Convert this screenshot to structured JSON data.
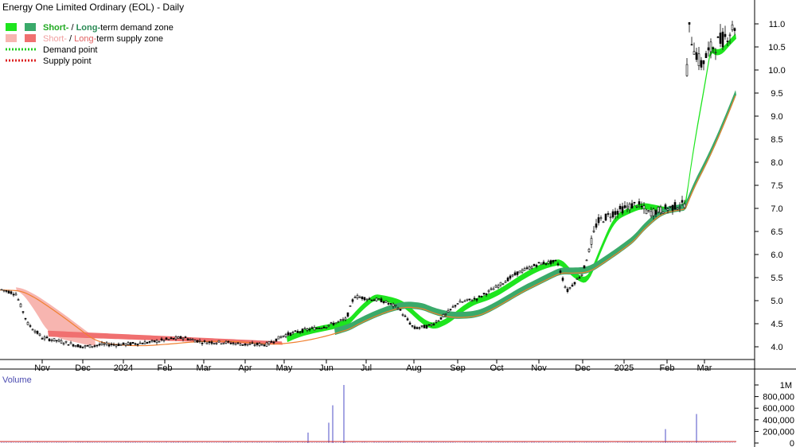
{
  "title": "Energy One Limited Ordinary (EOL) - Daily",
  "legend": {
    "demand_zone_label_short": "Short-",
    "demand_zone_label_sep": " / ",
    "demand_zone_label_long": "Long-",
    "demand_zone_label_rest": "term demand zone",
    "supply_zone_label_short": "Short-",
    "supply_zone_label_sep": " / ",
    "supply_zone_label_long": "Long-",
    "supply_zone_label_rest": "term supply zone",
    "demand_point_label": "Demand point",
    "supply_point_label": "Supply point"
  },
  "colors": {
    "short_demand": "#1ee51e",
    "long_demand": "#3aaa6a",
    "short_supply": "#f7b5b0",
    "long_supply": "#f07070",
    "demand_point": "#22cc22",
    "supply_point": "#dd2222",
    "orange_ma": "#f08030",
    "volume_bar": "#6a6ad0",
    "volume_line": "#cc2222"
  },
  "volume_panel": {
    "label": "Volume",
    "tick_labels": [
      "1M",
      "800,000",
      "600,000",
      "400,000",
      "200,000",
      "0"
    ]
  },
  "chart_data": {
    "type": "candlestick",
    "title": "Energy One Limited Ordinary (EOL) - Daily",
    "x_tick_labels": [
      "Nov",
      "Dec",
      "2024",
      "Feb",
      "Mar",
      "Apr",
      "May",
      "Jun",
      "Jul",
      "Aug",
      "Sep",
      "Oct",
      "Nov",
      "Dec",
      "2025",
      "Feb",
      "Mar"
    ],
    "y_tick_labels": [
      "11.0",
      "10.5",
      "10.0",
      "9.5",
      "9.0",
      "8.5",
      "8.0",
      "7.5",
      "7.0",
      "6.5",
      "6.0",
      "5.5",
      "5.0",
      "4.5",
      "4.0"
    ],
    "ylim": [
      3.7,
      11.5
    ],
    "months": [
      "2023-10",
      "2023-11",
      "2023-12",
      "2024-01",
      "2024-02",
      "2024-03",
      "2024-04",
      "2024-05",
      "2024-06",
      "2024-07",
      "2024-08",
      "2024-09",
      "2024-10",
      "2024-11",
      "2024-12",
      "2025-01",
      "2025-02",
      "2025-03"
    ],
    "price_close_approx": [
      {
        "date": "2023-10",
        "close": 5.2
      },
      {
        "date": "2023-11",
        "close": 4.2
      },
      {
        "date": "2023-12",
        "close": 4.0
      },
      {
        "date": "2024-01",
        "close": 4.05
      },
      {
        "date": "2024-02",
        "close": 4.15
      },
      {
        "date": "2024-03",
        "close": 4.1
      },
      {
        "date": "2024-04",
        "close": 4.05
      },
      {
        "date": "2024-05",
        "close": 4.3
      },
      {
        "date": "2024-06",
        "close": 5.0
      },
      {
        "date": "2024-07",
        "close": 4.85
      },
      {
        "date": "2024-08",
        "close": 4.4
      },
      {
        "date": "2024-09",
        "close": 4.9
      },
      {
        "date": "2024-10",
        "close": 5.6
      },
      {
        "date": "2024-11",
        "close": 5.8
      },
      {
        "date": "2024-12",
        "close": 6.6
      },
      {
        "date": "2025-01",
        "close": 7.0
      },
      {
        "date": "2025-02",
        "close": 10.5
      },
      {
        "date": "2025-03",
        "close": 11.0
      }
    ],
    "volume_ylim": [
      0,
      1000000
    ],
    "volume_spikes": [
      {
        "date": "2024-06",
        "volume": 180000
      },
      {
        "date": "2024-06",
        "volume": 350000
      },
      {
        "date": "2024-06",
        "volume": 650000
      },
      {
        "date": "2024-07",
        "volume": 1000000
      },
      {
        "date": "2025-02",
        "volume": 240000
      },
      {
        "date": "2025-03",
        "volume": 500000
      }
    ],
    "grid": false,
    "legend_position": "top-left"
  }
}
